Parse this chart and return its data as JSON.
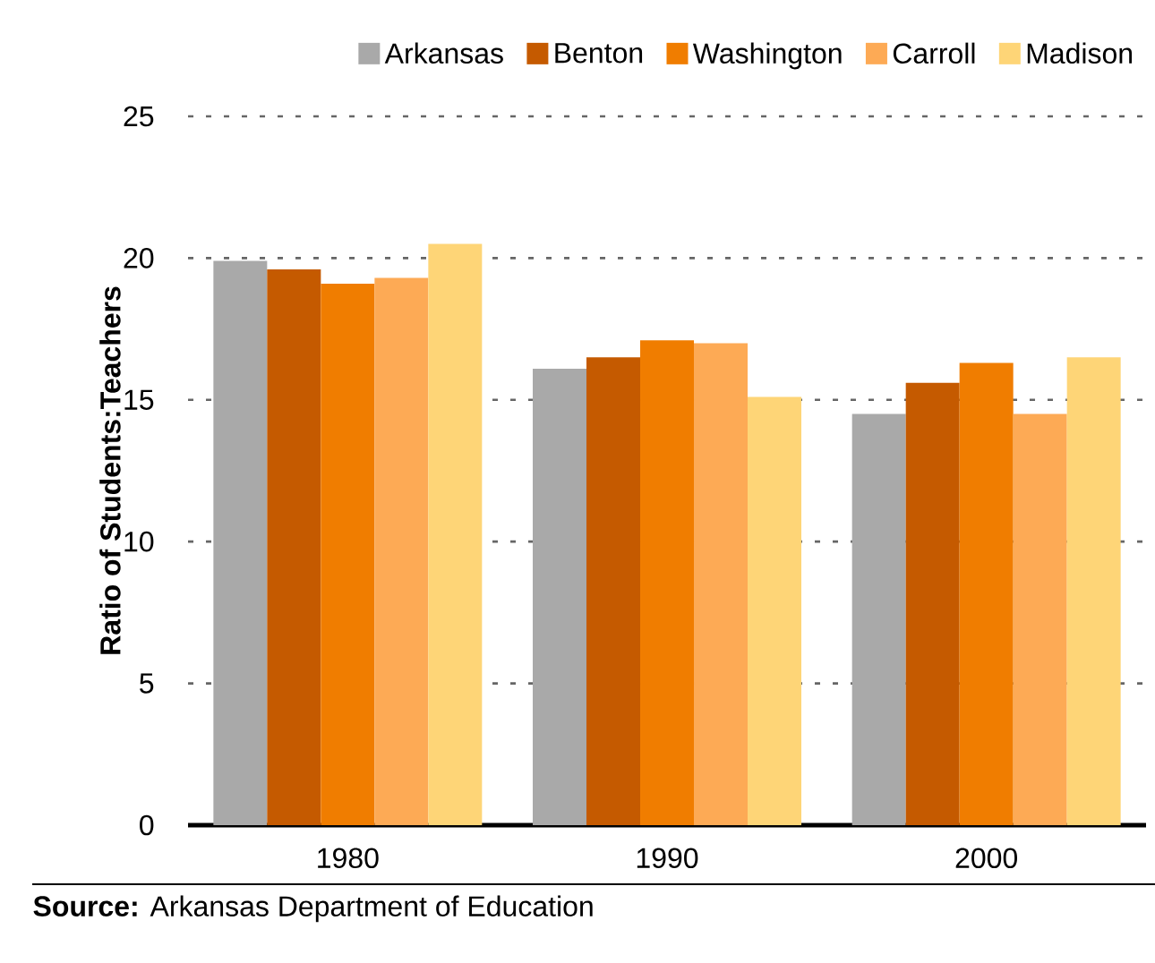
{
  "chart_data": {
    "type": "bar",
    "ylabel": "Ratio of Students:Teachers",
    "categories": [
      "1980",
      "1990",
      "2000"
    ],
    "series": [
      {
        "name": "Arkansas",
        "color": "#a9a9a9",
        "values": [
          19.9,
          16.1,
          14.5
        ]
      },
      {
        "name": "Benton",
        "color": "#c55a00",
        "values": [
          19.6,
          16.5,
          15.6
        ]
      },
      {
        "name": "Washington",
        "color": "#f07d00",
        "values": [
          19.1,
          17.1,
          16.3
        ]
      },
      {
        "name": "Carroll",
        "color": "#fdaa55",
        "values": [
          19.3,
          17.0,
          14.5
        ]
      },
      {
        "name": "Madison",
        "color": "#fed577",
        "values": [
          20.5,
          15.1,
          16.5
        ]
      }
    ],
    "ylim": [
      0,
      25
    ],
    "yticks": [
      0,
      5,
      10,
      15,
      20,
      25
    ],
    "grid": "y",
    "legend": "top",
    "annotations": [
      "**Source:** Arkansas Department of Education"
    ]
  }
}
